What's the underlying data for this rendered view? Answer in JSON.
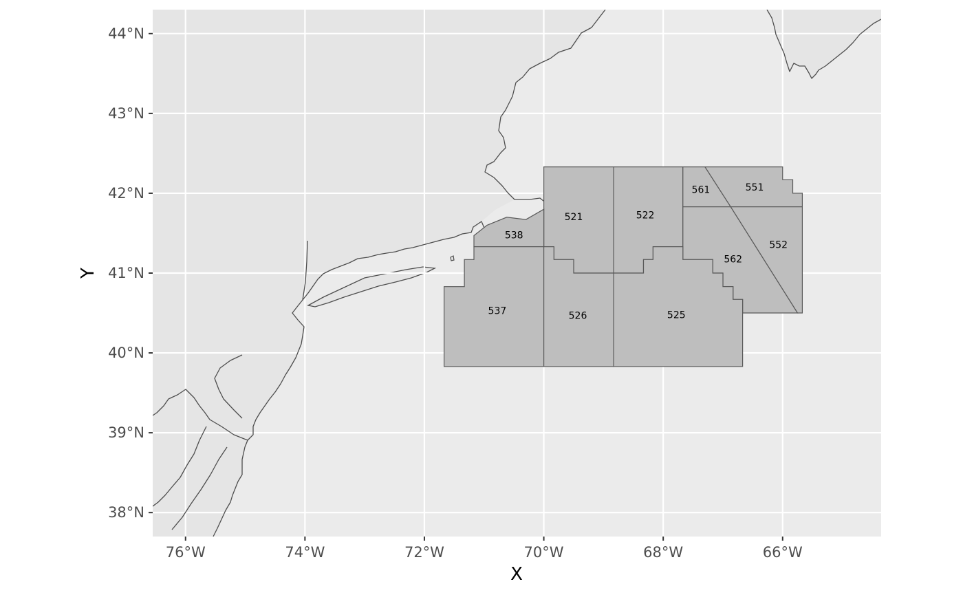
{
  "map": {
    "xlabel": "X",
    "ylabel": "Y",
    "x_ticks": [
      {
        "value": -76,
        "label": "76°W"
      },
      {
        "value": -74,
        "label": "74°W"
      },
      {
        "value": -72,
        "label": "72°W"
      },
      {
        "value": -70,
        "label": "70°W"
      },
      {
        "value": -68,
        "label": "68°W"
      },
      {
        "value": -66,
        "label": "66°W"
      }
    ],
    "y_ticks": [
      {
        "value": 38,
        "label": "38°N"
      },
      {
        "value": 39,
        "label": "39°N"
      },
      {
        "value": 40,
        "label": "40°N"
      },
      {
        "value": 41,
        "label": "41°N"
      },
      {
        "value": 42,
        "label": "42°N"
      },
      {
        "value": 43,
        "label": "43°N"
      },
      {
        "value": 44,
        "label": "44°N"
      }
    ],
    "lon_range": [
      -76.55,
      -64.35
    ],
    "lat_range": [
      37.7,
      44.3
    ],
    "colors": {
      "panel_background": "#ebebeb",
      "land": "#e5e5e5",
      "coastline": "#4d4d4d",
      "stat_area_fill": "#bebebe",
      "stat_area_border": "#595959",
      "grid": "#ffffff"
    },
    "statistical_areas": [
      {
        "id": "521",
        "label": "521",
        "label_at": [
          -69.5,
          41.7
        ],
        "polygon": [
          [
            -70.0,
            42.33
          ],
          [
            -68.83,
            42.33
          ],
          [
            -68.83,
            41.0
          ],
          [
            -69.5,
            41.0
          ],
          [
            -69.5,
            41.17
          ],
          [
            -69.83,
            41.17
          ],
          [
            -69.83,
            41.33
          ],
          [
            -70.0,
            41.33
          ]
        ]
      },
      {
        "id": "522",
        "label": "522",
        "label_at": [
          -68.3,
          41.72
        ],
        "polygon": [
          [
            -68.83,
            42.33
          ],
          [
            -67.67,
            42.33
          ],
          [
            -67.67,
            41.33
          ],
          [
            -68.17,
            41.33
          ],
          [
            -68.17,
            41.17
          ],
          [
            -68.33,
            41.17
          ],
          [
            -68.33,
            41.0
          ],
          [
            -68.83,
            41.0
          ]
        ]
      },
      {
        "id": "561",
        "label": "561",
        "label_at": [
          -67.37,
          42.04
        ],
        "polygon": [
          [
            -67.67,
            42.33
          ],
          [
            -67.3,
            42.33
          ],
          [
            -66.87,
            41.83
          ],
          [
            -67.67,
            41.83
          ]
        ]
      },
      {
        "id": "551",
        "label": "551",
        "label_at": [
          -66.47,
          42.07
        ],
        "polygon": [
          [
            -67.3,
            42.33
          ],
          [
            -66.0,
            42.33
          ],
          [
            -66.0,
            42.17
          ],
          [
            -65.83,
            42.17
          ],
          [
            -65.83,
            42.0
          ],
          [
            -65.67,
            42.0
          ],
          [
            -65.67,
            41.83
          ],
          [
            -66.87,
            41.83
          ]
        ]
      },
      {
        "id": "562",
        "label": "562",
        "label_at": [
          -66.83,
          41.17
        ],
        "polygon": [
          [
            -67.67,
            41.83
          ],
          [
            -66.87,
            41.83
          ],
          [
            -65.75,
            40.5
          ],
          [
            -66.67,
            40.5
          ],
          [
            -66.67,
            40.67
          ],
          [
            -66.83,
            40.67
          ],
          [
            -66.83,
            40.83
          ],
          [
            -67.0,
            40.83
          ],
          [
            -67.0,
            41.0
          ],
          [
            -67.17,
            41.0
          ],
          [
            -67.17,
            41.17
          ],
          [
            -67.67,
            41.17
          ]
        ]
      },
      {
        "id": "552",
        "label": "552",
        "label_at": [
          -66.07,
          41.35
        ],
        "polygon": [
          [
            -66.87,
            41.83
          ],
          [
            -65.67,
            41.83
          ],
          [
            -65.67,
            40.5
          ],
          [
            -65.75,
            40.5
          ]
        ]
      },
      {
        "id": "538",
        "label": "538",
        "label_at": [
          -70.5,
          41.47
        ],
        "polygon": [
          [
            -71.17,
            41.47
          ],
          [
            -70.95,
            41.6
          ],
          [
            -70.62,
            41.7
          ],
          [
            -70.3,
            41.67
          ],
          [
            -70.0,
            41.8
          ],
          [
            -70.0,
            41.33
          ],
          [
            -71.17,
            41.33
          ]
        ]
      },
      {
        "id": "537",
        "label": "537",
        "label_at": [
          -70.78,
          40.52
        ],
        "polygon": [
          [
            -71.17,
            41.33
          ],
          [
            -70.0,
            41.33
          ],
          [
            -70.0,
            39.83
          ],
          [
            -71.67,
            39.83
          ],
          [
            -71.67,
            40.83
          ],
          [
            -71.33,
            40.83
          ],
          [
            -71.33,
            41.17
          ],
          [
            -71.17,
            41.17
          ]
        ]
      },
      {
        "id": "526",
        "label": "526",
        "label_at": [
          -69.43,
          40.46
        ],
        "polygon": [
          [
            -70.0,
            41.33
          ],
          [
            -69.83,
            41.33
          ],
          [
            -69.83,
            41.17
          ],
          [
            -69.5,
            41.17
          ],
          [
            -69.5,
            41.0
          ],
          [
            -68.83,
            41.0
          ],
          [
            -68.83,
            39.83
          ],
          [
            -70.0,
            39.83
          ]
        ]
      },
      {
        "id": "525",
        "label": "525",
        "label_at": [
          -67.78,
          40.47
        ],
        "polygon": [
          [
            -68.83,
            41.0
          ],
          [
            -68.33,
            41.0
          ],
          [
            -68.33,
            41.17
          ],
          [
            -68.17,
            41.17
          ],
          [
            -68.17,
            41.33
          ],
          [
            -67.67,
            41.33
          ],
          [
            -67.67,
            41.17
          ],
          [
            -67.17,
            41.17
          ],
          [
            -67.17,
            41.0
          ],
          [
            -67.0,
            41.0
          ],
          [
            -67.0,
            40.83
          ],
          [
            -66.83,
            40.83
          ],
          [
            -66.83,
            40.67
          ],
          [
            -66.67,
            40.67
          ],
          [
            -66.67,
            39.83
          ],
          [
            -68.83,
            39.83
          ]
        ]
      }
    ]
  }
}
